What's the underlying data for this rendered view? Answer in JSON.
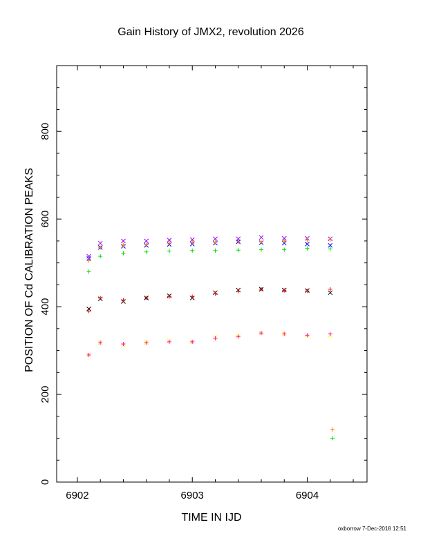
{
  "chart_data": {
    "type": "scatter",
    "title": "Gain History of JMX2, revolution 2026",
    "xlabel": "TIME IN IJD",
    "ylabel": "POSITION OF Cd CALIBRATION PEAKS",
    "xlim": [
      6901.82,
      6904.52
    ],
    "ylim": [
      0,
      950
    ],
    "xticks": [
      6902,
      6903,
      6904
    ],
    "yticks": [
      0,
      200,
      400,
      600,
      800
    ],
    "xtick_labels": [
      "6902",
      "6903",
      "6904"
    ],
    "ytick_labels": [
      "0",
      "200",
      "400",
      "600",
      "800"
    ],
    "grid": false,
    "footer": "oxborrow  7-Dec-2018 12:51",
    "series": [
      {
        "color": "#0000ff",
        "marker": "x",
        "x": [
          6902.1,
          6902.2,
          6902.4,
          6902.6,
          6902.8,
          6903.0,
          6903.2,
          6903.4,
          6903.6,
          6903.8,
          6904.0,
          6904.2
        ],
        "y": [
          510,
          535,
          538,
          540,
          542,
          543,
          545,
          548,
          546,
          545,
          543,
          540
        ]
      },
      {
        "color": "#9900ff",
        "marker": "x",
        "x": [
          6902.1,
          6902.2,
          6902.4,
          6902.6,
          6902.8,
          6903.0,
          6903.2,
          6903.4,
          6903.6,
          6903.8,
          6904.0,
          6904.2
        ],
        "y": [
          515,
          545,
          550,
          550,
          552,
          553,
          555,
          555,
          558,
          556,
          556,
          555
        ]
      },
      {
        "color": "#ff8000",
        "marker": "+",
        "x": [
          6902.1,
          6902.2,
          6902.4,
          6902.6,
          6902.8,
          6903.0,
          6903.2,
          6903.4,
          6903.6,
          6903.8,
          6904.0,
          6904.2
        ],
        "y": [
          505,
          535,
          540,
          542,
          545,
          547,
          547,
          548,
          548,
          550,
          552,
          553
        ]
      },
      {
        "color": "#00dd00",
        "marker": "+",
        "x": [
          6902.1,
          6902.2,
          6902.4,
          6902.6,
          6902.8,
          6903.0,
          6903.2,
          6903.4,
          6903.6,
          6903.8,
          6904.0,
          6904.2
        ],
        "y": [
          480,
          515,
          522,
          525,
          527,
          528,
          528,
          529,
          530,
          530,
          533,
          532
        ]
      },
      {
        "color": "#000000",
        "marker": "x",
        "x": [
          6902.1,
          6902.2,
          6902.4,
          6902.6,
          6902.8,
          6903.0,
          6903.2,
          6903.4,
          6903.6,
          6903.8,
          6904.0,
          6904.2
        ],
        "y": [
          395,
          418,
          412,
          420,
          425,
          420,
          432,
          438,
          440,
          438,
          437,
          432
        ]
      },
      {
        "color": "#ff0000",
        "marker": "+",
        "x": [
          6902.1,
          6902.2,
          6902.4,
          6902.6,
          6902.8,
          6903.0,
          6903.2,
          6903.4,
          6903.6,
          6903.8,
          6904.0,
          6904.2
        ],
        "y": [
          390,
          420,
          415,
          420,
          423,
          423,
          430,
          435,
          440,
          437,
          436,
          440
        ]
      },
      {
        "color": "#ffff00",
        "marker": "x",
        "x": [
          6902.1,
          6902.2,
          6902.4,
          6902.6,
          6902.8,
          6903.0,
          6903.2,
          6903.4,
          6903.6,
          6903.8,
          6904.0,
          6904.2
        ],
        "y": [
          290,
          318,
          312,
          318,
          322,
          320,
          330,
          332,
          340,
          338,
          335,
          335
        ]
      },
      {
        "color": "#ff00ff",
        "marker": "+",
        "x": [
          6902.1,
          6902.2,
          6902.4,
          6902.6,
          6902.8,
          6903.0,
          6903.2,
          6903.4,
          6903.6,
          6903.8,
          6904.0,
          6904.2
        ],
        "y": [
          290,
          318,
          315,
          318,
          320,
          320,
          328,
          332,
          340,
          338,
          335,
          338
        ]
      },
      {
        "color": "#ff8000",
        "marker": "+",
        "x": [
          6904.22
        ],
        "y": [
          120
        ]
      },
      {
        "color": "#00dd00",
        "marker": "+",
        "x": [
          6904.22
        ],
        "y": [
          100
        ]
      }
    ]
  }
}
